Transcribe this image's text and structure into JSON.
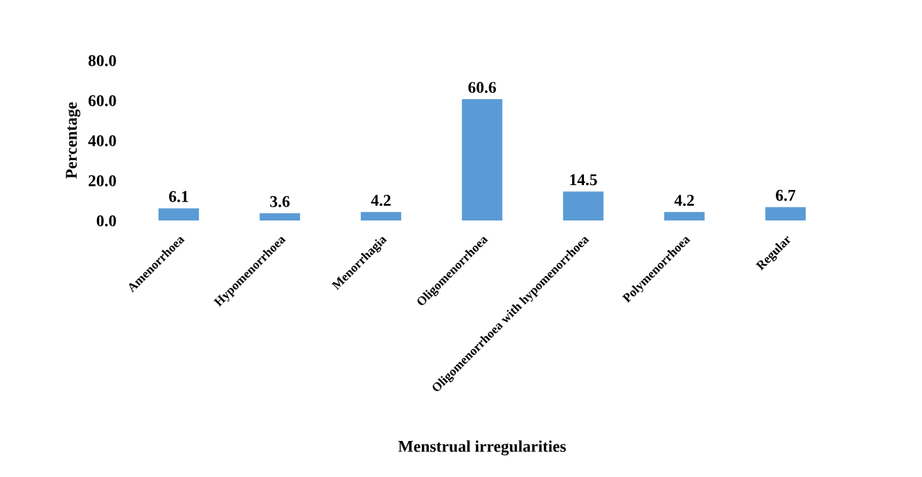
{
  "chart_data": {
    "type": "bar",
    "xlabel": "Menstrual irregularities",
    "ylabel": "Percentage",
    "categories": [
      "Amenorrhoea",
      "Hypomenorrhoea",
      "Menorrhagia",
      "Oligomenorrhoea",
      "Oligomenorrhoea with hypomenorrhoea",
      "Polymenorrhoea",
      "Regular"
    ],
    "values": [
      6.1,
      3.6,
      4.2,
      60.6,
      14.5,
      4.2,
      6.7
    ],
    "color": "#5b9bd5",
    "ylim": [
      0,
      80
    ],
    "yticks": [
      {
        "value": 0,
        "label": "0.0"
      },
      {
        "value": 20,
        "label": "20.0"
      },
      {
        "value": 40,
        "label": "40.0"
      },
      {
        "value": 60,
        "label": "60.0"
      },
      {
        "value": 80,
        "label": "80.0"
      }
    ],
    "data_labels": true,
    "grid": false,
    "legend": false
  }
}
